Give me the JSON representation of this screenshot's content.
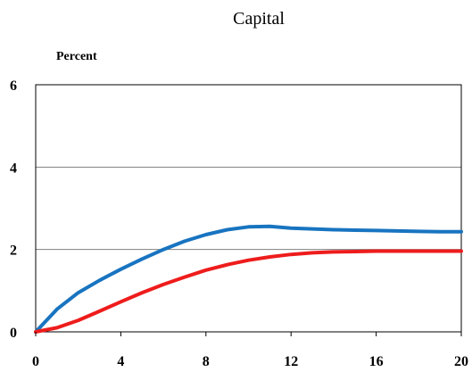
{
  "chart_data": {
    "type": "line",
    "title": "Capital",
    "ylabel": "Percent",
    "xlabel": "",
    "xlim": [
      0,
      20
    ],
    "ylim": [
      0,
      6
    ],
    "x_ticks": [
      0,
      4,
      8,
      12,
      16,
      20
    ],
    "y_ticks": [
      0,
      2,
      4,
      6
    ],
    "grid": "horizontal",
    "legend": "none",
    "series": [
      {
        "color": "#1874c0",
        "x": [
          0,
          1,
          2,
          3,
          4,
          5,
          6,
          7,
          8,
          9,
          10,
          11,
          12,
          13,
          14,
          15,
          16,
          17,
          18,
          19,
          20
        ],
        "y": [
          0,
          0.55,
          0.95,
          1.25,
          1.52,
          1.77,
          2.0,
          2.2,
          2.36,
          2.48,
          2.55,
          2.56,
          2.52,
          2.5,
          2.48,
          2.47,
          2.46,
          2.45,
          2.44,
          2.43,
          2.43
        ]
      },
      {
        "color": "#ee1c1c",
        "x": [
          0,
          1,
          2,
          3,
          4,
          5,
          6,
          7,
          8,
          9,
          10,
          11,
          12,
          13,
          14,
          15,
          16,
          17,
          18,
          19,
          20
        ],
        "y": [
          0,
          0.1,
          0.28,
          0.5,
          0.73,
          0.95,
          1.15,
          1.33,
          1.5,
          1.63,
          1.74,
          1.82,
          1.88,
          1.92,
          1.94,
          1.95,
          1.96,
          1.96,
          1.96,
          1.96,
          1.96
        ]
      }
    ]
  }
}
